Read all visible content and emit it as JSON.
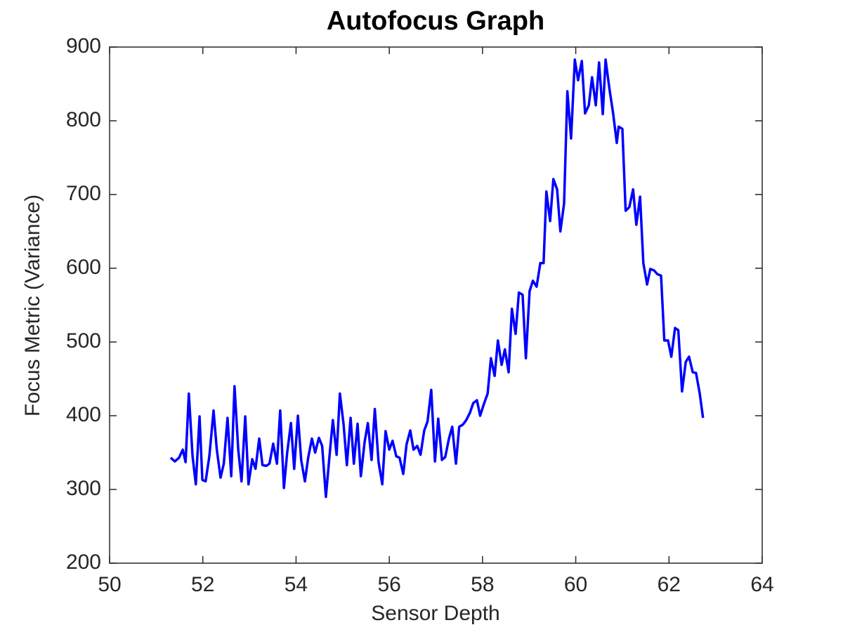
{
  "chart_data": {
    "type": "line",
    "title": "Autofocus Graph",
    "x_label": "Sensor Depth",
    "y_label": "Focus Metric (Variance)",
    "color": "#0000ff",
    "grid": false,
    "xlim": [
      50,
      64
    ],
    "xticks": [
      50,
      52,
      54,
      56,
      58,
      60,
      62,
      64
    ],
    "ylim": [
      200,
      900
    ],
    "yticks": [
      200,
      300,
      400,
      500,
      600,
      700,
      800,
      900
    ],
    "x": [
      51.31,
      51.4,
      51.49,
      51.57,
      51.63,
      51.7,
      51.78,
      51.85,
      51.93,
      51.99,
      52.06,
      52.14,
      52.23,
      52.3,
      52.38,
      52.45,
      52.53,
      52.61,
      52.68,
      52.76,
      52.83,
      52.91,
      52.98,
      53.06,
      53.13,
      53.21,
      53.28,
      53.36,
      53.43,
      53.51,
      53.59,
      53.66,
      53.74,
      53.81,
      53.89,
      53.96,
      54.04,
      54.11,
      54.19,
      54.26,
      54.34,
      54.41,
      54.49,
      54.56,
      54.64,
      54.72,
      54.79,
      54.87,
      54.94,
      55.02,
      55.09,
      55.17,
      55.24,
      55.32,
      55.39,
      55.47,
      55.54,
      55.62,
      55.69,
      55.77,
      55.85,
      55.92,
      56.0,
      56.07,
      56.15,
      56.22,
      56.3,
      56.37,
      56.45,
      56.52,
      56.6,
      56.67,
      56.75,
      56.82,
      56.9,
      56.98,
      57.05,
      57.13,
      57.2,
      57.28,
      57.35,
      57.43,
      57.5,
      57.58,
      57.65,
      57.73,
      57.8,
      57.88,
      57.95,
      58.03,
      58.11,
      58.18,
      58.26,
      58.33,
      58.41,
      58.48,
      58.56,
      58.63,
      58.71,
      58.78,
      58.86,
      58.93,
      59.01,
      59.08,
      59.16,
      59.24,
      59.31,
      59.37,
      59.45,
      59.52,
      59.6,
      59.67,
      59.75,
      59.82,
      59.9,
      59.98,
      60.05,
      60.13,
      60.2,
      60.28,
      60.35,
      60.43,
      60.5,
      60.58,
      60.64,
      60.73,
      60.8,
      60.88,
      60.92,
      61.0,
      61.07,
      61.15,
      61.23,
      61.3,
      61.38,
      61.45,
      61.53,
      61.6,
      61.68,
      61.75,
      61.83,
      61.9,
      61.98,
      62.05,
      62.13,
      62.2,
      62.28,
      62.36,
      62.43,
      62.51,
      62.58,
      62.66,
      62.73
    ],
    "values": [
      343,
      338,
      343,
      354,
      337,
      430,
      345,
      307,
      399,
      313,
      311,
      345,
      407,
      354,
      316,
      335,
      397,
      318,
      440,
      354,
      311,
      399,
      307,
      341,
      328,
      369,
      333,
      332,
      335,
      362,
      335,
      407,
      302,
      350,
      390,
      328,
      400,
      340,
      311,
      343,
      369,
      350,
      370,
      359,
      290,
      347,
      394,
      347,
      430,
      388,
      333,
      397,
      335,
      389,
      318,
      364,
      390,
      340,
      409,
      337,
      307,
      379,
      354,
      366,
      345,
      343,
      321,
      361,
      380,
      354,
      359,
      347,
      380,
      392,
      435,
      338,
      396,
      340,
      344,
      369,
      385,
      335,
      385,
      388,
      394,
      404,
      417,
      421,
      400,
      416,
      430,
      478,
      454,
      502,
      469,
      490,
      459,
      545,
      511,
      567,
      564,
      478,
      569,
      583,
      575,
      607,
      607,
      704,
      664,
      721,
      707,
      650,
      688,
      840,
      776,
      883,
      855,
      881,
      810,
      821,
      859,
      821,
      879,
      809,
      883,
      840,
      811,
      770,
      792,
      789,
      678,
      683,
      707,
      659,
      697,
      607,
      578,
      599,
      597,
      592,
      590,
      502,
      502,
      480,
      519,
      516,
      433,
      473,
      480,
      459,
      458,
      430,
      397
    ]
  }
}
